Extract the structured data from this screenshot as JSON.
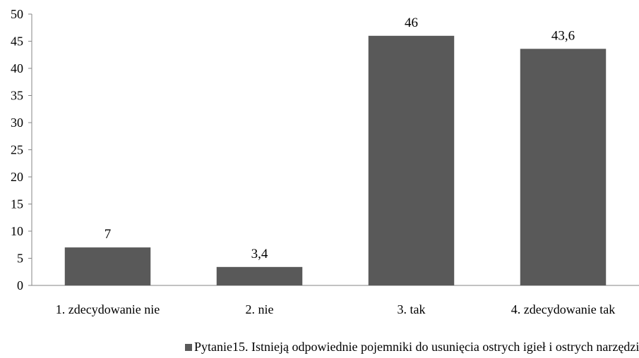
{
  "chart_data": {
    "type": "bar",
    "categories": [
      "1. zdecydowanie nie",
      "2. nie",
      "3. tak",
      "4. zdecydowanie tak"
    ],
    "series": [
      {
        "name": "Pytanie15. Istnieją odpowiednie pojemniki do usunięcia ostrych igieł i ostrych narzędzi.",
        "values": [
          7,
          3.4,
          46,
          43.6
        ],
        "value_labels": [
          "7",
          "3,4",
          "46",
          "43,6"
        ],
        "color": "#595959"
      }
    ],
    "y_ticks": [
      "0",
      "5",
      "10",
      "15",
      "20",
      "25",
      "30",
      "35",
      "40",
      "45",
      "50"
    ],
    "ylim": [
      0,
      50
    ],
    "y_step": 5,
    "grid": false,
    "legend": "bottom",
    "axis_color": "#868686"
  }
}
